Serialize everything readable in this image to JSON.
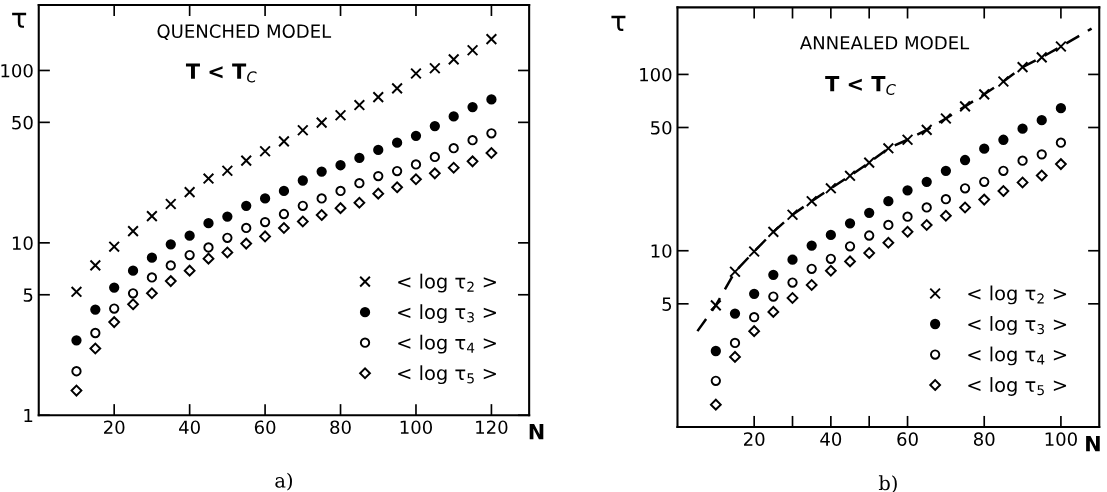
{
  "chart_data": [
    {
      "type": "scatter",
      "xlabel": "N",
      "ylabel": "τ",
      "annotations": [
        "QUENCHED MODEL",
        "T < T$_{C}$",
        "a)"
      ],
      "x": [
        10,
        15,
        20,
        25,
        30,
        35,
        40,
        45,
        50,
        55,
        60,
        65,
        70,
        75,
        80,
        85,
        90,
        95,
        100,
        105,
        110,
        115,
        120
      ],
      "series": [
        {
          "name": "< log τ$_{2}$ >",
          "color": "#000000",
          "marker": "cross",
          "values": [
            5.2,
            7.4,
            9.5,
            11.7,
            14.3,
            16.8,
            19.7,
            23.6,
            26.2,
            30,
            34,
            38.8,
            45,
            49.8,
            55,
            63,
            70,
            78.7,
            96,
            103,
            116,
            131,
            152
          ]
        },
        {
          "name": "< log τ$_{3}$ >",
          "color": "#000000",
          "marker": "circle",
          "values": [
            2.72,
            4.1,
            5.5,
            6.9,
            8.2,
            9.8,
            11.0,
            13.0,
            14.2,
            16.4,
            18.1,
            20,
            23,
            25.9,
            28.2,
            31.1,
            34.6,
            38.1,
            41.8,
            47.6,
            54.1,
            61.3,
            67.9
          ]
        },
        {
          "name": "< log τ$_{4}$ >",
          "color": "#000000",
          "marker": "circle",
          "values": [
            1.8,
            3.0,
            4.16,
            5.1,
            6.3,
            7.4,
            8.5,
            9.4,
            10.7,
            12.2,
            13.2,
            14.7,
            16.4,
            18.1,
            20,
            22.2,
            24.4,
            26.1,
            28.5,
            31.5,
            35.4,
            39.4,
            43.2
          ]
        },
        {
          "name": "< log τ$_{5}$ >",
          "color": "#000000",
          "marker": "diamond",
          "values": [
            1.39,
            2.44,
            3.47,
            4.4,
            5.1,
            6.0,
            6.9,
            8.1,
            8.8,
            9.9,
            10.9,
            12.2,
            13.3,
            14.5,
            15.9,
            17.1,
            19.3,
            21.0,
            23.4,
            25.3,
            27.3,
            29.7,
            33.2
          ]
        }
      ],
      "log": "y",
      "xlim": [
        0,
        130
      ],
      "ylim": [
        1,
        240
      ],
      "xticks": [
        20,
        40,
        60,
        80,
        100,
        120
      ],
      "yticks": [
        1,
        5,
        10,
        50,
        100
      ],
      "legend": "bottom right",
      "grid": false
    },
    {
      "type": "scatter",
      "xlabel": "N",
      "ylabel": "τ",
      "annotations": [
        "ANNEALED MODEL",
        "T < T$_{C}$",
        "b)"
      ],
      "x": [
        10,
        15,
        20,
        25,
        30,
        35,
        40,
        45,
        50,
        55,
        60,
        65,
        70,
        75,
        80,
        85,
        90,
        95,
        100
      ],
      "series": [
        {
          "name": "< log τ$_{2}$ >",
          "color": "#000000",
          "marker": "cross",
          "values": [
            4.9,
            7.6,
            9.9,
            12.8,
            16.0,
            19.1,
            22.6,
            26.6,
            31.6,
            38.1,
            42.6,
            48.5,
            56.2,
            65.9,
            77.1,
            91.2,
            110,
            125,
            144
          ]
        },
        {
          "name": "< log τ$_{3}$ >",
          "color": "#000000",
          "marker": "circle",
          "values": [
            2.7,
            4.4,
            5.7,
            7.3,
            8.9,
            10.7,
            12.3,
            14.3,
            16.4,
            19.1,
            22.0,
            24.6,
            28.4,
            32.7,
            37.9,
            42.6,
            49.2,
            55,
            64.3
          ]
        },
        {
          "name": "< log τ$_{4}$ >",
          "color": "#000000",
          "marker": "circle",
          "values": [
            1.83,
            3.0,
            4.2,
            5.5,
            6.6,
            7.9,
            9.0,
            10.6,
            12.2,
            14.0,
            15.6,
            17.6,
            19.6,
            22.6,
            24.6,
            28.4,
            32.4,
            35.2,
            41.0
          ]
        },
        {
          "name": "< log τ$_{5}$ >",
          "color": "#000000",
          "marker": "diamond",
          "values": [
            1.34,
            2.5,
            3.5,
            4.5,
            5.4,
            6.4,
            7.7,
            8.7,
            9.7,
            11.1,
            12.8,
            14.0,
            15.8,
            17.6,
            19.5,
            21.8,
            24.4,
            26.7,
            31.0
          ]
        },
        {
          "type": "line",
          "color": "#000000",
          "line_style": "dashed",
          "marker": "none",
          "x": [
            5.2,
            10,
            15,
            20,
            25,
            30,
            35,
            40,
            45,
            50,
            55,
            60,
            65,
            70,
            75,
            80,
            85,
            90,
            95,
            100,
            108
          ],
          "values": [
            3.5,
            4.9,
            7.6,
            9.9,
            12.8,
            16.0,
            19.1,
            22.6,
            26.6,
            31.6,
            38.1,
            42.6,
            48.5,
            56.2,
            65.9,
            77.1,
            91.2,
            110,
            125,
            144,
            182
          ]
        }
      ],
      "log": "y",
      "xlim": [
        0,
        110
      ],
      "ylim": [
        1,
        240
      ],
      "xticks": [
        20,
        {
          "value": 30,
          "label": null
        },
        40,
        {
          "value": 50,
          "label": null
        },
        60,
        80,
        100
      ],
      "yticks": [
        5,
        10,
        50,
        100
      ],
      "legend": "bottom right",
      "grid": false
    }
  ]
}
